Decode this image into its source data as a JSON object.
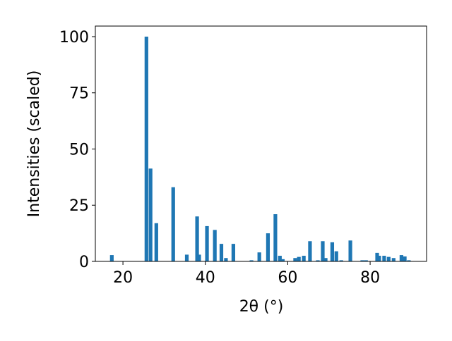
{
  "chart_data": {
    "type": "bar",
    "x_label": "2θ (°)",
    "y_label": "Intensities (scaled)",
    "x": [
      17.3,
      25.7,
      26.7,
      28.1,
      32.2,
      35.5,
      38.0,
      38.5,
      40.4,
      42.3,
      43.9,
      45.0,
      46.8,
      51.2,
      53.1,
      55.2,
      57.0,
      58.1,
      58.8,
      61.8,
      62.7,
      63.9,
      65.4,
      67.3,
      68.5,
      69.2,
      70.8,
      71.8,
      73.0,
      75.2,
      78.1,
      79.0,
      81.7,
      82.2,
      83.4,
      84.5,
      85.7,
      87.6,
      88.4,
      89.4
    ],
    "values": [
      2.8,
      100,
      41.3,
      17,
      33,
      3,
      20,
      3,
      15.7,
      14,
      7.8,
      1.5,
      7.8,
      0.5,
      4,
      12.5,
      21,
      2.5,
      1,
      1.5,
      2,
      2.5,
      9,
      0.5,
      9,
      1.5,
      8.5,
      4.5,
      0.5,
      9.3,
      0.5,
      0.5,
      3.8,
      2.5,
      2.5,
      2,
      1.5,
      2.8,
      2.2,
      0.5
    ],
    "color": "#1f77b4",
    "xlim": [
      13.3,
      93.7
    ],
    "xticks": [
      20,
      40,
      60,
      80
    ],
    "ylim": [
      0,
      104.7
    ],
    "yticks": [
      0,
      25,
      50,
      75,
      100
    ]
  }
}
